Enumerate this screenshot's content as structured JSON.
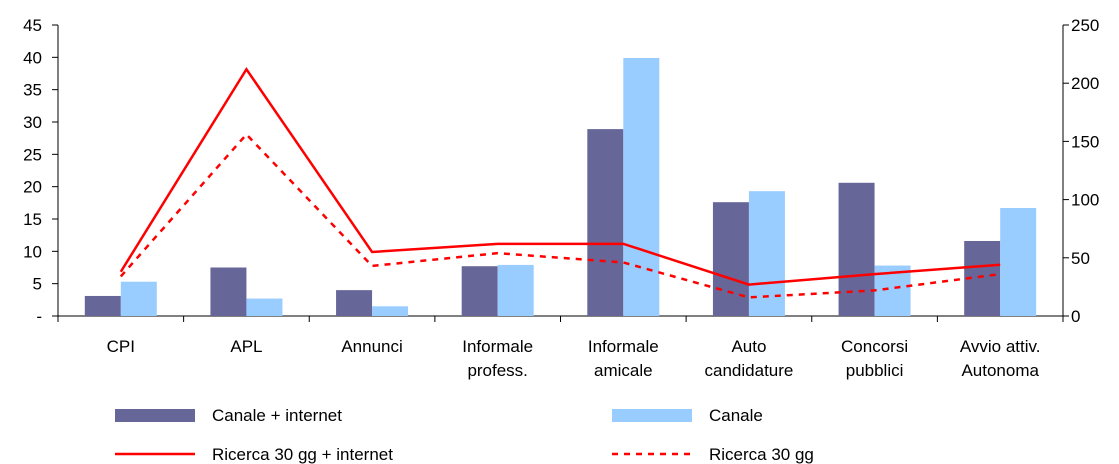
{
  "chart_data": {
    "type": "bar",
    "categories": [
      [
        "CPI"
      ],
      [
        "APL"
      ],
      [
        "Annunci"
      ],
      [
        "Informale",
        "profess."
      ],
      [
        "Informale",
        "amicale"
      ],
      [
        "Auto",
        "candidature"
      ],
      [
        "Concorsi",
        "pubblici"
      ],
      [
        "Avvio attiv.",
        "Autonoma"
      ]
    ],
    "y_left": {
      "min": 0,
      "max": 45,
      "ticks": [
        {
          "value": 0,
          "label": "-"
        },
        {
          "value": 5,
          "label": "5"
        },
        {
          "value": 10,
          "label": "10"
        },
        {
          "value": 15,
          "label": "15"
        },
        {
          "value": 20,
          "label": "20"
        },
        {
          "value": 25,
          "label": "25"
        },
        {
          "value": 30,
          "label": "30"
        },
        {
          "value": 35,
          "label": "35"
        },
        {
          "value": 40,
          "label": "40"
        },
        {
          "value": 45,
          "label": "45"
        }
      ]
    },
    "y_right": {
      "min": 0,
      "max": 250,
      "ticks": [
        {
          "value": 0,
          "label": "0"
        },
        {
          "value": 50,
          "label": "50"
        },
        {
          "value": 100,
          "label": "100"
        },
        {
          "value": 150,
          "label": "150"
        },
        {
          "value": 200,
          "label": "200"
        },
        {
          "value": 250,
          "label": "250"
        }
      ]
    },
    "bar_series": [
      {
        "name": "Canale + internet",
        "color": "#666699",
        "axis": "left",
        "values": [
          3.1,
          7.5,
          4.0,
          7.7,
          28.9,
          17.6,
          20.6,
          11.6
        ]
      },
      {
        "name": "Canale",
        "color": "#99ccff",
        "axis": "left",
        "values": [
          5.3,
          2.7,
          1.5,
          7.9,
          39.9,
          19.3,
          7.8,
          16.7
        ]
      }
    ],
    "line_series": [
      {
        "name": "Ricerca 30 gg + internet",
        "color": "#ff0000",
        "style": "solid",
        "axis": "right",
        "values": [
          38,
          212,
          55,
          62,
          62,
          27,
          36,
          44
        ]
      },
      {
        "name": "Ricerca 30 gg",
        "color": "#ff0000",
        "style": "dashed",
        "axis": "right",
        "values": [
          34,
          156,
          43,
          54,
          46,
          16,
          22,
          36
        ]
      }
    ],
    "legend_position": "bottom",
    "grid": false
  }
}
